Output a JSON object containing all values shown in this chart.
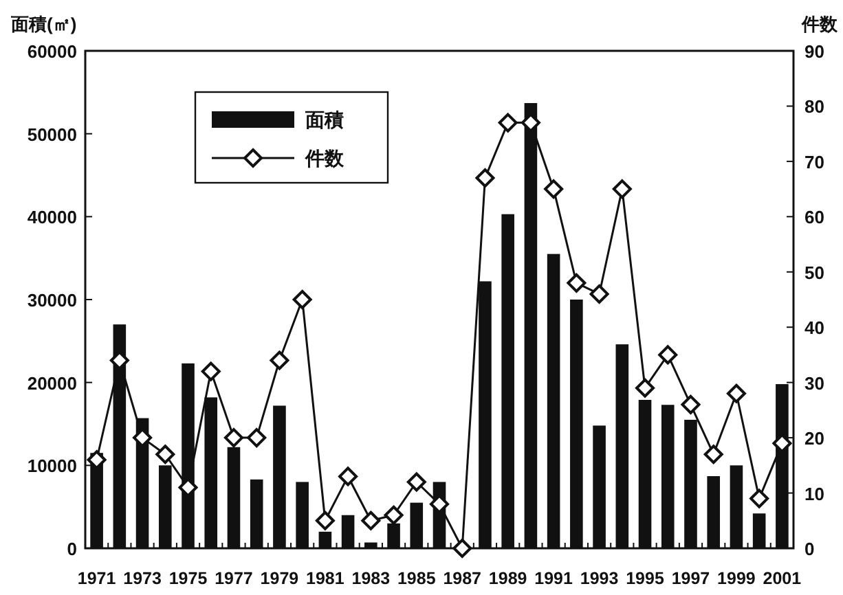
{
  "chart_data": {
    "type": "bar",
    "ylabel": "面積(㎡)",
    "y2label": "件数",
    "categories": [
      "1971",
      null,
      "1973",
      null,
      "1975",
      null,
      "1977",
      null,
      "1979",
      null,
      "1981",
      null,
      "1983",
      null,
      "1985",
      null,
      "1987",
      null,
      "1989",
      null,
      "1991",
      null,
      "1993",
      null,
      "1995",
      null,
      "1997",
      null,
      "1999",
      null,
      "2001"
    ],
    "series": [
      {
        "name": "面積",
        "color": "#111111",
        "values": [
          11500,
          27000,
          15700,
          10000,
          22300,
          18200,
          12200,
          8300,
          17200,
          8000,
          2000,
          4000,
          700,
          3000,
          5500,
          8000,
          0,
          32200,
          40300,
          53700,
          35500,
          30000,
          14800,
          24600,
          17900,
          17300,
          15500,
          8700,
          10000,
          4200,
          19800
        ]
      },
      {
        "name": "件数",
        "type": "line",
        "axis": "y2",
        "color": "#111111",
        "marker": "diamond",
        "values": [
          16,
          34,
          20,
          17,
          11,
          32,
          20,
          20,
          34,
          45,
          5,
          13,
          5,
          6,
          12,
          8,
          0,
          67,
          77,
          77,
          65,
          48,
          46,
          65,
          29,
          35,
          26,
          17,
          28,
          9,
          19
        ]
      }
    ],
    "ylim": [
      0,
      60000
    ],
    "yticks": [
      0,
      10000,
      20000,
      30000,
      40000,
      50000,
      60000
    ],
    "y2lim": [
      0,
      90
    ],
    "y2ticks": [
      0,
      10,
      20,
      30,
      40,
      50,
      60,
      70,
      80,
      90
    ],
    "legend": "top left",
    "grid": false
  }
}
